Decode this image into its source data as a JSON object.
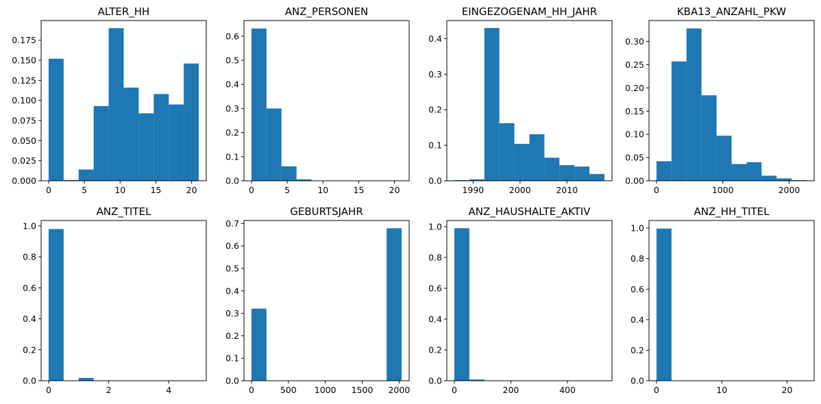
{
  "bar_color": "#1f77b4",
  "chart_data": [
    {
      "type": "bar",
      "title": "ALTER_HH",
      "xlim": [
        -1.05,
        22.05
      ],
      "ylim": [
        0,
        0.1995
      ],
      "xticks": [
        0,
        5,
        10,
        15,
        20
      ],
      "yticks": [
        0.0,
        0.025,
        0.05,
        0.075,
        0.1,
        0.125,
        0.15,
        0.175
      ],
      "yticklabels": [
        "0.000",
        "0.025",
        "0.050",
        "0.075",
        "0.100",
        "0.125",
        "0.150",
        "0.175"
      ],
      "bin_edges": [
        0,
        2.1,
        4.2,
        6.3,
        8.4,
        10.5,
        12.6,
        14.7,
        16.8,
        18.9,
        21
      ],
      "values": [
        0.152,
        0.001,
        0.014,
        0.093,
        0.19,
        0.116,
        0.084,
        0.108,
        0.095,
        0.146
      ]
    },
    {
      "type": "bar",
      "title": "ANZ_PERSONEN",
      "xlim": [
        -1.05,
        22.05
      ],
      "ylim": [
        0,
        0.665
      ],
      "xticks": [
        0,
        5,
        10,
        15,
        20
      ],
      "yticks": [
        0.0,
        0.1,
        0.2,
        0.3,
        0.4,
        0.5,
        0.6
      ],
      "yticklabels": [
        "0.0",
        "0.1",
        "0.2",
        "0.3",
        "0.4",
        "0.5",
        "0.6"
      ],
      "bin_edges": [
        0,
        2.1,
        4.2,
        6.3,
        8.4,
        10.5,
        12.6,
        14.7,
        16.8,
        18.9,
        21
      ],
      "values": [
        0.632,
        0.3,
        0.06,
        0.006,
        0.0005,
        0.0002,
        0.0001,
        0.0001,
        0.0,
        0.0001
      ]
    },
    {
      "type": "bar",
      "title": "EINGEZOGENAM_HH_JAHR",
      "xlim": [
        1984.4,
        2019.6
      ],
      "ylim": [
        0,
        0.451
      ],
      "xticks": [
        1990,
        2000,
        2010
      ],
      "yticks": [
        0.0,
        0.1,
        0.2,
        0.3,
        0.4
      ],
      "yticklabels": [
        "0.0",
        "0.1",
        "0.2",
        "0.3",
        "0.4"
      ],
      "bin_edges": [
        1986,
        1989.2,
        1992.4,
        1995.6,
        1998.8,
        2002,
        2005.2,
        2008.4,
        2011.6,
        2014.8,
        2018
      ],
      "values": [
        0.002,
        0.004,
        0.43,
        0.162,
        0.104,
        0.131,
        0.065,
        0.044,
        0.04,
        0.019
      ]
    },
    {
      "type": "bar",
      "title": "KBA13_ANZAHL_PKW",
      "xlim": [
        -113.2,
        2377.2
      ],
      "ylim": [
        0,
        0.345
      ],
      "xticks": [
        0,
        1000,
        2000
      ],
      "yticks": [
        0.0,
        0.05,
        0.1,
        0.15,
        0.2,
        0.25,
        0.3
      ],
      "yticklabels": [
        "0.00",
        "0.05",
        "0.10",
        "0.15",
        "0.20",
        "0.25",
        "0.30"
      ],
      "bin_edges": [
        0,
        226.4,
        452.8,
        679.2,
        905.6,
        1132,
        1358.4,
        1584.8,
        1811.2,
        2037.6,
        2264
      ],
      "values": [
        0.042,
        0.257,
        0.328,
        0.184,
        0.097,
        0.036,
        0.04,
        0.011,
        0.005,
        0.0015
      ]
    },
    {
      "type": "bar",
      "title": "ANZ_TITEL",
      "xlim": [
        -0.25,
        5.25
      ],
      "ylim": [
        0,
        1.035
      ],
      "xticks": [
        0,
        2,
        4
      ],
      "yticks": [
        0.0,
        0.2,
        0.4,
        0.6,
        0.8,
        1.0
      ],
      "yticklabels": [
        "0.0",
        "0.2",
        "0.4",
        "0.6",
        "0.8",
        "1.0"
      ],
      "bin_edges": [
        0,
        0.5,
        1.0,
        1.5,
        2.0,
        2.5,
        3.0,
        3.5,
        4.0,
        4.5,
        5.0
      ],
      "values": [
        0.98,
        0.0,
        0.018,
        0.001,
        0.0002,
        0.0,
        0.0,
        0.0,
        0.0,
        0.0
      ]
    },
    {
      "type": "bar",
      "title": "GEBURTSJAHR",
      "xlim": [
        -101.7,
        2135.7
      ],
      "ylim": [
        0,
        0.7135
      ],
      "xticks": [
        0,
        500,
        1000,
        1500,
        2000
      ],
      "yticks": [
        0.0,
        0.1,
        0.2,
        0.3,
        0.4,
        0.5,
        0.6,
        0.7
      ],
      "yticklabels": [
        "0.0",
        "0.1",
        "0.2",
        "0.3",
        "0.4",
        "0.5",
        "0.6",
        "0.7"
      ],
      "bin_edges": [
        0,
        203.4,
        406.8,
        610.2,
        813.6,
        1017,
        1220.4,
        1423.8,
        1627.2,
        1830.6,
        2034
      ],
      "values": [
        0.321,
        0.0,
        0.0,
        0.0,
        0.0,
        0.0,
        0.0,
        0.0,
        0.0,
        0.679
      ]
    },
    {
      "type": "bar",
      "title": "ANZ_HAUSHALTE_AKTIV",
      "xlim": [
        -26.55,
        557.55
      ],
      "ylim": [
        0,
        1.04
      ],
      "xticks": [
        0,
        200,
        400
      ],
      "yticks": [
        0.0,
        0.2,
        0.4,
        0.6,
        0.8,
        1.0
      ],
      "yticklabels": [
        "0.0",
        "0.2",
        "0.4",
        "0.6",
        "0.8",
        "1.0"
      ],
      "bin_edges": [
        0,
        53.1,
        106.2,
        159.3,
        212.4,
        265.5,
        318.6,
        371.7,
        424.8,
        477.9,
        531
      ],
      "values": [
        0.99,
        0.008,
        0.001,
        0.0003,
        0.0001,
        0.0,
        0.0,
        0.0,
        0.0,
        0.0
      ]
    },
    {
      "type": "bar",
      "title": "ANZ_HH_TITEL",
      "xlim": [
        -1.15,
        24.15
      ],
      "ylim": [
        0,
        1.05
      ],
      "xticks": [
        0,
        10,
        20
      ],
      "yticks": [
        0.0,
        0.2,
        0.4,
        0.6,
        0.8,
        1.0
      ],
      "yticklabels": [
        "0.0",
        "0.2",
        "0.4",
        "0.6",
        "0.8",
        "1.0"
      ],
      "bin_edges": [
        0,
        2.3,
        4.6,
        6.9,
        9.2,
        11.5,
        13.8,
        16.1,
        18.4,
        20.7,
        23
      ],
      "values": [
        0.997,
        0.002,
        0.0003,
        0.0001,
        0.0,
        0.0,
        0.0,
        0.0,
        0.0,
        0.0
      ]
    }
  ]
}
